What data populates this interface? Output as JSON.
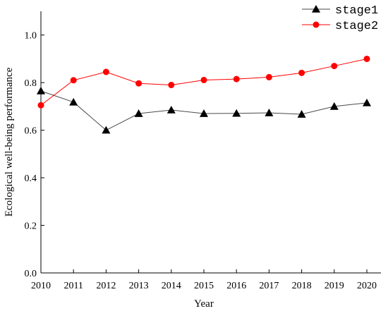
{
  "chart_data": {
    "type": "line",
    "x": [
      2010,
      2011,
      2012,
      2013,
      2014,
      2015,
      2016,
      2017,
      2018,
      2019,
      2020
    ],
    "series": [
      {
        "name": "stage1",
        "values": [
          0.765,
          0.718,
          0.6,
          0.67,
          0.685,
          0.67,
          0.671,
          0.673,
          0.667,
          0.7,
          0.715
        ],
        "color": "#000000",
        "line_color": "#4a4a4a",
        "marker": "triangle"
      },
      {
        "name": "stage2",
        "values": [
          0.705,
          0.81,
          0.845,
          0.797,
          0.79,
          0.811,
          0.815,
          0.823,
          0.841,
          0.87,
          0.9
        ],
        "color": "#ff0000",
        "line_color": "#ff0000",
        "marker": "circle"
      }
    ],
    "xlabel": "Year",
    "ylabel": "Ecological well-being performance",
    "xlim": [
      2010,
      2020
    ],
    "ylim": [
      0,
      1.1
    ],
    "y_ticks": [
      "0.0",
      "0.2",
      "0.4",
      "0.6",
      "0.8",
      "1.0"
    ],
    "x_ticks": [
      "2010",
      "2011",
      "2012",
      "2013",
      "2014",
      "2015",
      "2016",
      "2017",
      "2018",
      "2019",
      "2020"
    ],
    "grid": false,
    "legend_position": "top-right"
  }
}
